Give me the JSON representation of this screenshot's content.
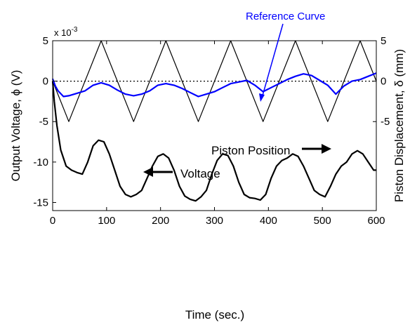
{
  "chart_data": {
    "type": "line",
    "xlabel": "Time (sec.)",
    "ylabel_left": "Output Voltage, ϕ (V)",
    "ylabel_right": "Piston Displacement, δ (mm)",
    "exponent_label": "x 10",
    "exponent_power": "-3",
    "xlim": [
      0,
      600
    ],
    "ylim_left": [
      -16,
      5
    ],
    "ylim_right": [
      -16,
      5
    ],
    "x_ticks": [
      "0",
      "100",
      "200",
      "300",
      "400",
      "500",
      "600"
    ],
    "y_ticks_left": [
      "5",
      "0",
      "-5",
      "-10",
      "-15"
    ],
    "y_ticks_right": [
      "5",
      "0",
      "-5"
    ],
    "grid": false,
    "annotations": {
      "reference_curve": "Reference Curve",
      "piston_position": "Piston Position",
      "voltage": "Voltage"
    },
    "zero_line": {
      "y": 0,
      "style": "dotted"
    },
    "series": [
      {
        "name": "Piston Position",
        "color": "#000000",
        "axis": "right",
        "x": [
          0,
          30,
          90,
          150,
          210,
          270,
          330,
          390,
          450,
          510,
          570,
          600
        ],
        "y": [
          0,
          -5,
          5,
          -5,
          5,
          -5,
          5,
          -5,
          5,
          -5,
          5,
          0
        ]
      },
      {
        "name": "Reference Curve",
        "color": "#0000ff",
        "axis": "left",
        "x": [
          0,
          5,
          10,
          20,
          30,
          45,
          60,
          75,
          90,
          105,
          120,
          135,
          150,
          165,
          180,
          195,
          210,
          225,
          240,
          255,
          270,
          285,
          300,
          315,
          330,
          345,
          360,
          375,
          390,
          405,
          420,
          435,
          450,
          465,
          480,
          495,
          510,
          525,
          540,
          555,
          570,
          585,
          600
        ],
        "y": [
          0.3,
          -0.6,
          -1.2,
          -1.9,
          -1.8,
          -1.5,
          -1.2,
          -0.5,
          -0.2,
          -0.5,
          -1.1,
          -1.6,
          -1.8,
          -1.6,
          -1.2,
          -0.5,
          -0.3,
          -0.5,
          -0.9,
          -1.4,
          -1.9,
          -1.6,
          -1.3,
          -0.8,
          -0.3,
          -0.1,
          0.1,
          -0.5,
          -1.3,
          -0.8,
          -0.3,
          0.2,
          0.6,
          0.9,
          0.7,
          0.1,
          -0.5,
          -1.6,
          -0.6,
          0.0,
          0.2,
          0.6,
          1.0
        ]
      },
      {
        "name": "Voltage",
        "color": "#000000",
        "axis": "left",
        "x": [
          0,
          3,
          8,
          15,
          25,
          35,
          45,
          55,
          65,
          75,
          85,
          95,
          105,
          115,
          125,
          135,
          145,
          155,
          165,
          175,
          185,
          195,
          205,
          215,
          225,
          235,
          245,
          255,
          265,
          275,
          285,
          295,
          305,
          315,
          325,
          335,
          345,
          355,
          365,
          375,
          385,
          395,
          405,
          415,
          425,
          435,
          445,
          455,
          465,
          475,
          485,
          495,
          505,
          515,
          525,
          535,
          545,
          555,
          565,
          575,
          585,
          595,
          600
        ],
        "y": [
          0,
          -2.5,
          -5.5,
          -8.5,
          -10.5,
          -11.0,
          -11.3,
          -11.5,
          -10.0,
          -8.0,
          -7.3,
          -7.5,
          -9.0,
          -11.0,
          -13.0,
          -14.0,
          -14.3,
          -14.0,
          -13.5,
          -12.0,
          -10.5,
          -9.3,
          -9.0,
          -9.5,
          -11.0,
          -13.0,
          -14.2,
          -14.6,
          -14.8,
          -14.3,
          -13.5,
          -11.5,
          -9.8,
          -9.0,
          -9.2,
          -10.5,
          -12.5,
          -14.0,
          -14.4,
          -14.5,
          -14.7,
          -14.0,
          -12.0,
          -10.5,
          -9.8,
          -9.5,
          -9.0,
          -9.3,
          -10.5,
          -12.0,
          -13.5,
          -14.0,
          -14.3,
          -13.0,
          -11.5,
          -10.5,
          -10.0,
          -9.0,
          -8.6,
          -9.0,
          -10.0,
          -11.0,
          -11.0
        ]
      }
    ]
  }
}
